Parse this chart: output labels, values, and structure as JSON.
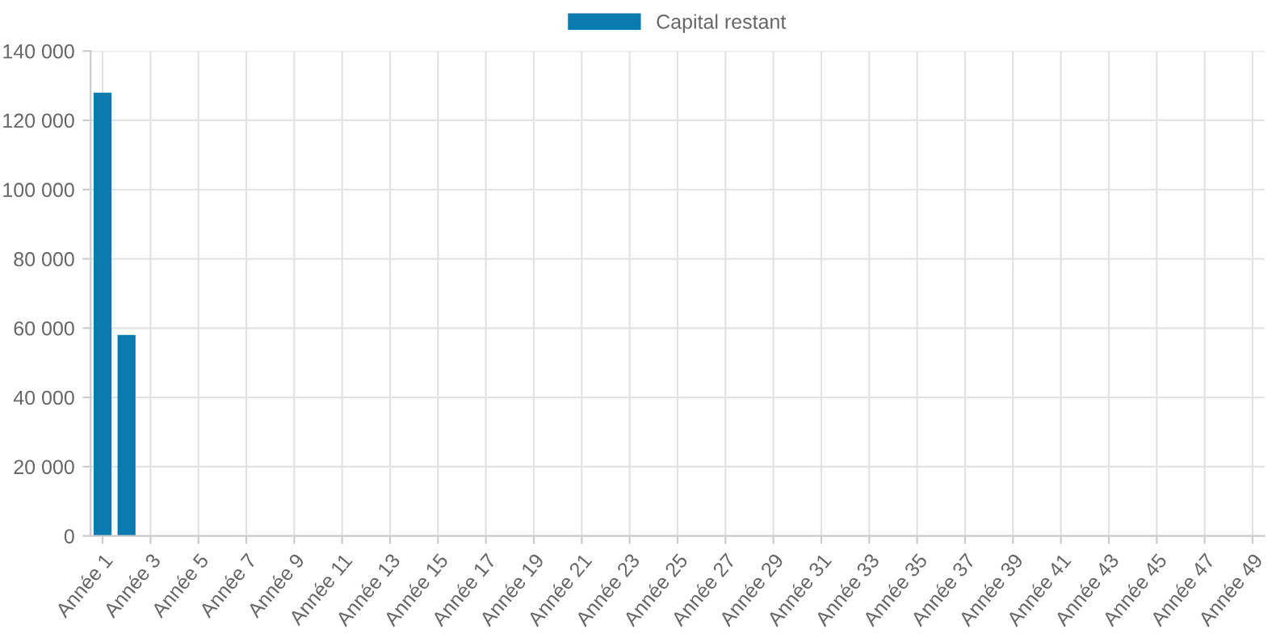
{
  "chart_data": {
    "type": "bar",
    "categories": [
      "Année 1",
      null,
      "Année 3",
      null,
      "Année 5",
      null,
      "Année 7",
      null,
      "Année 9",
      null,
      "Année 11",
      null,
      "Année 13",
      null,
      "Année 15",
      null,
      "Année 17",
      null,
      "Année 19",
      null,
      "Année 21",
      null,
      "Année 23",
      null,
      "Année 25",
      null,
      "Année 27",
      null,
      "Année 29",
      null,
      "Année 31",
      null,
      "Année 33",
      null,
      "Année 35",
      null,
      "Année 37",
      null,
      "Année 39",
      null,
      "Année 41",
      null,
      "Année 43",
      null,
      "Année 45",
      null,
      "Année 47",
      null,
      "Année 49"
    ],
    "series": [
      {
        "name": "Capital restant",
        "color": "#0a7bb0",
        "values": [
          128000,
          58000,
          0,
          0,
          0,
          0,
          0,
          0,
          0,
          0,
          0,
          0,
          0,
          0,
          0,
          0,
          0,
          0,
          0,
          0,
          0,
          0,
          0,
          0,
          0,
          0,
          0,
          0,
          0,
          0,
          0,
          0,
          0,
          0,
          0,
          0,
          0,
          0,
          0,
          0,
          0,
          0,
          0,
          0,
          0,
          0,
          0,
          0,
          0
        ]
      }
    ],
    "ylim": [
      0,
      140000
    ],
    "yticks": [
      {
        "value": 0,
        "label": "0"
      },
      {
        "value": 20000,
        "label": "20 000"
      },
      {
        "value": 40000,
        "label": "40 000"
      },
      {
        "value": 60000,
        "label": "60 000"
      },
      {
        "value": 80000,
        "label": "80 000"
      },
      {
        "value": 100000,
        "label": "100 000"
      },
      {
        "value": 120000,
        "label": "120 000"
      },
      {
        "value": 140000,
        "label": "140 000"
      }
    ],
    "grid": true,
    "legend": "top"
  }
}
